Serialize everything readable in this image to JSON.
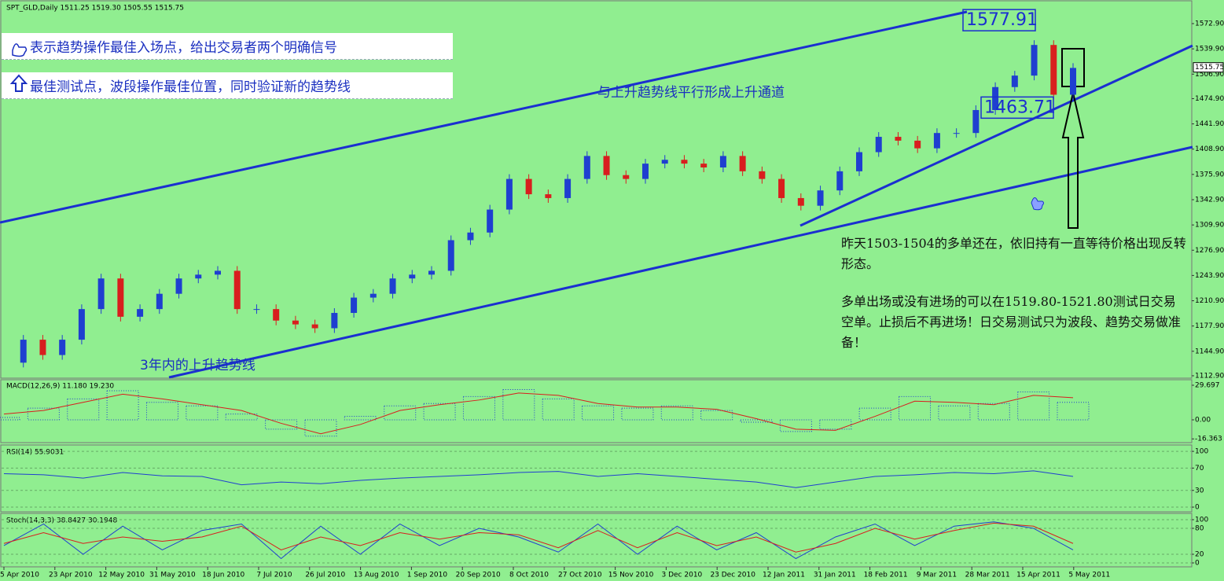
{
  "header": "SPT_GLD,Daily  1511.25 1519.30 1505.55 1515.75",
  "notes": {
    "signal_box": "表示趋势操作最佳入场点，给出交易者两个明确信号",
    "test_box": "最佳测试点，波段操作最佳位置，同时验证新的趋势线",
    "channel": "与上升趋势线平行形成上升通道",
    "trendline": "3年内的上升趋势线",
    "comment_1": "昨天1503-1504的多单还在，依旧持有一直等待价格出现反转形态。",
    "comment_2": "多单出场或没有进场的可以在1519.80-1521.80测试日交易空单。止损后不再进场！日交易测试只为波段、趋势交易做准备！"
  },
  "x_axis_labels": [
    "5 Apr 2010",
    "23 Apr 2010",
    "12 May 2010",
    "31 May 2010",
    "18 Jun 2010",
    "7 Jul 2010",
    "26 Jul 2010",
    "13 Aug 2010",
    "1 Sep 2010",
    "20 Sep 2010",
    "8 Oct 2010",
    "27 Oct 2010",
    "15 Nov 2010",
    "3 Dec 2010",
    "23 Dec 2010",
    "12 Jan 2011",
    "31 Jan 2011",
    "18 Feb 2011",
    "9 Mar 2011",
    "28 Mar 2011",
    "15 Apr 2011",
    "5 May 2011"
  ],
  "chart_data": [
    {
      "type": "candlestick",
      "up_color": "#1f3fd0",
      "down_color": "#d81e1e",
      "values": [
        1130,
        1160,
        1140,
        1160,
        1200,
        1240,
        1190,
        1200,
        1220,
        1240,
        1245,
        1250,
        1200,
        1200,
        1185,
        1180,
        1175,
        1195,
        1215,
        1220,
        1240,
        1245,
        1250,
        1290,
        1300,
        1330,
        1370,
        1350,
        1345,
        1370,
        1400,
        1375,
        1370,
        1390,
        1395,
        1390,
        1385,
        1400,
        1380,
        1370,
        1345,
        1335,
        1355,
        1380,
        1405,
        1425,
        1420,
        1410,
        1430,
        1430,
        1460,
        1490,
        1505,
        1545,
        1480,
        1515
      ],
      "ylim": [
        1110.8,
        1598.6
      ],
      "yticks": [
        {
          "value": 1572.9,
          "label": "1572.90"
        },
        {
          "value": 1539.9,
          "label": "1539.90"
        },
        {
          "value": 1506.9,
          "label": "1506.90"
        },
        {
          "value": 1474.9,
          "label": "1474.90"
        },
        {
          "value": 1441.9,
          "label": "1441.90"
        },
        {
          "value": 1408.9,
          "label": "1408.90"
        },
        {
          "value": 1375.9,
          "label": "1375.90"
        },
        {
          "value": 1342.9,
          "label": "1342.90"
        },
        {
          "value": 1309.9,
          "label": "1309.90"
        },
        {
          "value": 1276.9,
          "label": "1276.90"
        },
        {
          "value": 1243.9,
          "label": "1243.90"
        },
        {
          "value": 1210.9,
          "label": "1210.90"
        },
        {
          "value": 1177.9,
          "label": "1177.90"
        },
        {
          "value": 1144.9,
          "label": "1144.90"
        },
        {
          "value": 1112.9,
          "label": "1112.90"
        }
      ],
      "last_price": 1515.75,
      "high_label": 1577.91,
      "low_label": 1463.71
    },
    {
      "type": "macd",
      "title": "MACD(12,26,9) 11.180 19.230",
      "color": "#1f3fd0",
      "signal_color": "#d81e1e",
      "values": [
        2,
        10,
        18,
        25,
        15,
        12,
        5,
        -8,
        -14,
        3,
        12,
        14,
        20,
        26,
        18,
        12,
        10,
        12,
        8,
        -2,
        -10,
        -8,
        10,
        20,
        12,
        14,
        24,
        15
      ],
      "signal": [
        5,
        8,
        15,
        22,
        18,
        13,
        8,
        -3,
        -12,
        -4,
        8,
        13,
        17,
        23,
        21,
        14,
        11,
        11,
        9,
        1,
        -8,
        -9,
        3,
        16,
        15,
        13,
        21,
        19
      ],
      "ylim": [
        -18.9,
        33.75
      ],
      "yticks": [
        29.697,
        {
          "value": 0,
          "label": "0.00"
        },
        -16.363
      ]
    },
    {
      "type": "line",
      "title": "RSI(14) 55.9031",
      "color": "#1f3fd0",
      "values": [
        60,
        58,
        52,
        62,
        56,
        55,
        40,
        45,
        42,
        48,
        52,
        55,
        58,
        62,
        64,
        55,
        60,
        55,
        50,
        45,
        35,
        45,
        55,
        58,
        62,
        60,
        65,
        55
      ],
      "ylim": [
        -7,
        110
      ],
      "yticks": [
        100,
        70,
        30,
        0
      ]
    },
    {
      "type": "multiline",
      "title": "Stoch(14,3,3) 38.8427 30.1948",
      "series": [
        {
          "color": "#1f3fd0",
          "values": [
            40,
            90,
            20,
            85,
            30,
            75,
            90,
            10,
            85,
            20,
            90,
            40,
            80,
            60,
            25,
            90,
            20,
            85,
            30,
            70,
            10,
            60,
            90,
            40,
            85,
            95,
            80,
            30
          ]
        },
        {
          "color": "#d81e1e",
          "values": [
            45,
            70,
            45,
            60,
            50,
            60,
            85,
            30,
            60,
            40,
            70,
            55,
            70,
            65,
            35,
            75,
            35,
            70,
            40,
            60,
            25,
            45,
            80,
            55,
            75,
            92,
            85,
            45
          ]
        }
      ],
      "ylim": [
        -7.3,
        112.7
      ],
      "yticks": [
        100,
        80,
        20,
        0
      ]
    }
  ]
}
